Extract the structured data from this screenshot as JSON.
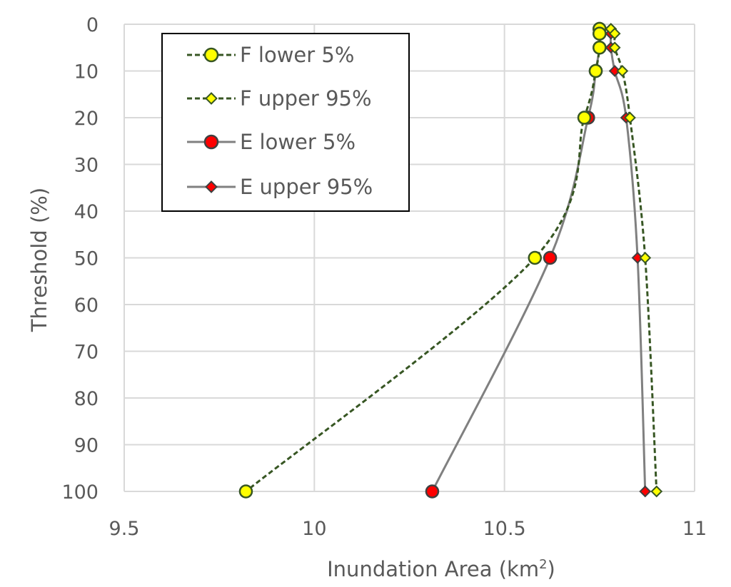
{
  "chart_data": {
    "type": "line",
    "xlabel": "Inundation Area  (km",
    "xlabel_sup": "2",
    "xlabel_close": ")",
    "ylabel": "Threshold (%)",
    "xlim": [
      9.5,
      11
    ],
    "ylim": [
      0,
      100
    ],
    "y_inverted": true,
    "grid": true,
    "legend_position": "top-left",
    "x_ticks": [
      9.5,
      10,
      10.5,
      11
    ],
    "x_tick_labels": [
      "9.5",
      "10",
      "10.5",
      "11"
    ],
    "y_ticks": [
      0,
      10,
      20,
      30,
      40,
      50,
      60,
      70,
      80,
      90,
      100
    ],
    "y_tick_labels": [
      "0",
      "10",
      "20",
      "30",
      "40",
      "50",
      "60",
      "70",
      "80",
      "90",
      "100"
    ],
    "series": [
      {
        "name": "F lower 5%",
        "line_style": "dashed",
        "line_color": "#375623",
        "marker": "circle",
        "marker_fill": "#ffff00",
        "marker_stroke": "#375623",
        "points": [
          {
            "x": 10.75,
            "y": 1
          },
          {
            "x": 10.75,
            "y": 2
          },
          {
            "x": 10.75,
            "y": 5
          },
          {
            "x": 10.74,
            "y": 10
          },
          {
            "x": 10.71,
            "y": 20
          },
          {
            "x": 10.58,
            "y": 50
          },
          {
            "x": 9.82,
            "y": 100
          }
        ]
      },
      {
        "name": "F upper 95%",
        "line_style": "dashed",
        "line_color": "#375623",
        "marker": "diamond",
        "marker_fill": "#ffff00",
        "marker_stroke": "#375623",
        "points": [
          {
            "x": 10.78,
            "y": 1
          },
          {
            "x": 10.79,
            "y": 2
          },
          {
            "x": 10.79,
            "y": 5
          },
          {
            "x": 10.81,
            "y": 10
          },
          {
            "x": 10.83,
            "y": 20
          },
          {
            "x": 10.87,
            "y": 50
          },
          {
            "x": 10.9,
            "y": 100
          }
        ]
      },
      {
        "name": "E lower 5%",
        "line_style": "solid",
        "line_color": "#808080",
        "marker": "circle",
        "marker_fill": "#ff0000",
        "marker_stroke": "#404040",
        "points": [
          {
            "x": 10.75,
            "y": 1
          },
          {
            "x": 10.75,
            "y": 2
          },
          {
            "x": 10.75,
            "y": 5
          },
          {
            "x": 10.74,
            "y": 10
          },
          {
            "x": 10.72,
            "y": 20
          },
          {
            "x": 10.62,
            "y": 50
          },
          {
            "x": 10.31,
            "y": 100
          }
        ]
      },
      {
        "name": "E upper 95%",
        "line_style": "solid",
        "line_color": "#808080",
        "marker": "diamond",
        "marker_fill": "#ff0000",
        "marker_stroke": "#404040",
        "points": [
          {
            "x": 10.78,
            "y": 1
          },
          {
            "x": 10.78,
            "y": 2
          },
          {
            "x": 10.78,
            "y": 5
          },
          {
            "x": 10.79,
            "y": 10
          },
          {
            "x": 10.82,
            "y": 20
          },
          {
            "x": 10.85,
            "y": 50
          },
          {
            "x": 10.87,
            "y": 100
          }
        ]
      }
    ]
  }
}
